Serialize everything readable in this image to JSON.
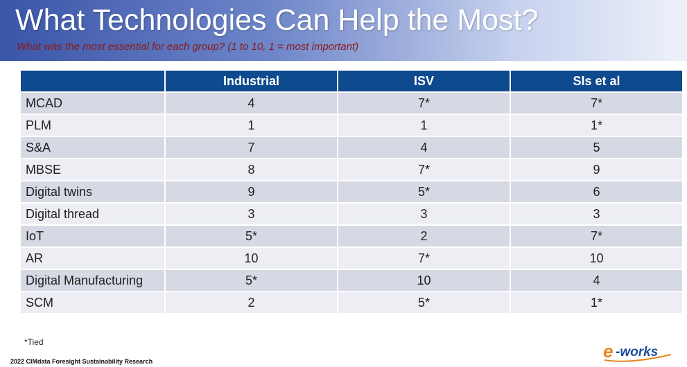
{
  "slide": {
    "title": "What Technologies Can Help the Most?",
    "subtitle": "What was the most essential for each group? (1 to 10, 1 = most important)"
  },
  "table": {
    "headers": [
      "",
      "Industrial",
      "ISV",
      "SIs et al"
    ],
    "rows": [
      {
        "name": "MCAD",
        "values": [
          "4",
          "7*",
          "7*"
        ]
      },
      {
        "name": "PLM",
        "values": [
          "1",
          "1",
          "1*"
        ]
      },
      {
        "name": "S&A",
        "values": [
          "7",
          "4",
          "5"
        ]
      },
      {
        "name": "MBSE",
        "values": [
          "8",
          "7*",
          "9"
        ]
      },
      {
        "name": "Digital twins",
        "values": [
          "9",
          "5*",
          "6"
        ]
      },
      {
        "name": "Digital thread",
        "values": [
          "3",
          "3",
          "3"
        ]
      },
      {
        "name": "IoT",
        "values": [
          "5*",
          "2",
          "7*"
        ]
      },
      {
        "name": "AR",
        "values": [
          "10",
          "7*",
          "10"
        ]
      },
      {
        "name": "Digital Manufacturing",
        "values": [
          "5*",
          "10",
          "4"
        ]
      },
      {
        "name": "SCM",
        "values": [
          "2",
          "5*",
          "1*"
        ]
      }
    ]
  },
  "footnote": "*Tied",
  "source": "2022 CIMdata Foresight Sustainability Research",
  "logo": {
    "text": "e-works",
    "color_orange": "#e8841c",
    "color_blue": "#1f4e9c"
  },
  "colors": {
    "header_bg": "#0e4a8e",
    "row_odd": "#d6d8e3",
    "row_even": "#eceef3",
    "subtitle": "#8b1a1a"
  }
}
